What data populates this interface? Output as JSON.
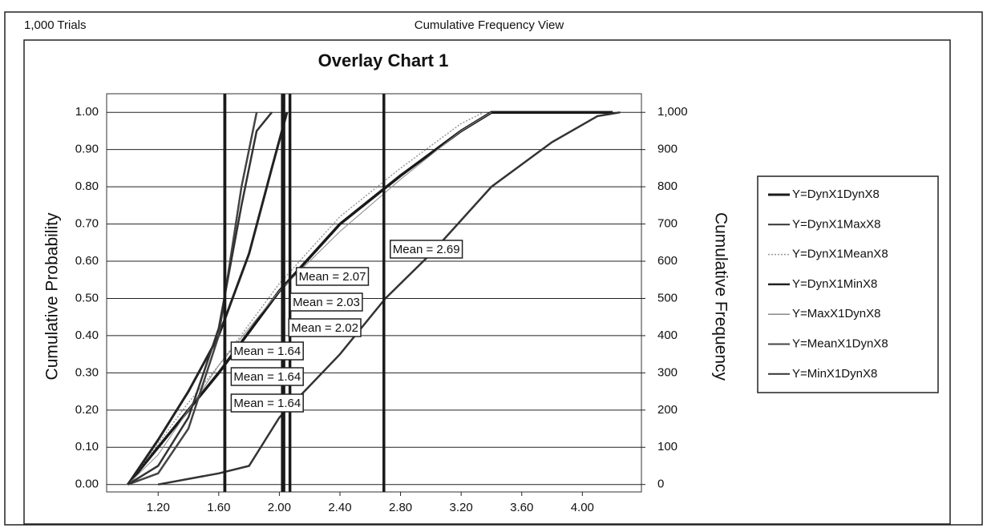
{
  "chart_data": {
    "type": "line",
    "trials_label": "1,000 Trials",
    "view_title": "Cumulative Frequency View",
    "title": "Overlay Chart 1",
    "y_label": "Cumulative Probability",
    "y2_label": "Cumulative Frequency",
    "xlim": [
      0.86,
      4.39
    ],
    "xticks": [
      {
        "value": 1.2,
        "label": "1.20"
      },
      {
        "value": 1.6,
        "label": "1.60"
      },
      {
        "value": 2.0,
        "label": "2.00"
      },
      {
        "value": 2.4,
        "label": "2.40"
      },
      {
        "value": 2.8,
        "label": "2.80"
      },
      {
        "value": 3.2,
        "label": "3.20"
      },
      {
        "value": 3.6,
        "label": "3.60"
      },
      {
        "value": 4.0,
        "label": "4.00"
      }
    ],
    "ylim": [
      -0.02,
      1.05
    ],
    "yticks": [
      {
        "value": 0,
        "label": "0.00"
      },
      {
        "value": 0.1,
        "label": "0.10"
      },
      {
        "value": 0.2,
        "label": "0.20"
      },
      {
        "value": 0.3,
        "label": "0.30"
      },
      {
        "value": 0.4,
        "label": "0.40"
      },
      {
        "value": 0.5,
        "label": "0.50"
      },
      {
        "value": 0.6,
        "label": "0.60"
      },
      {
        "value": 0.7,
        "label": "0.70"
      },
      {
        "value": 0.8,
        "label": "0.80"
      },
      {
        "value": 0.9,
        "label": "0.90"
      },
      {
        "value": 1.0,
        "label": "1.00"
      }
    ],
    "y2lim": [
      -20,
      1050
    ],
    "y2ticks": [
      0,
      100,
      200,
      300,
      400,
      500,
      600,
      700,
      800,
      900,
      {
        "value": 1000,
        "label": "1,000"
      }
    ],
    "grid": true,
    "legend": "right",
    "series": [
      {
        "name": "Y=DynX1DynX8",
        "color": "#1a1a1a",
        "mean": 2.07,
        "mean_label": "Mean = 2.07",
        "x": [
          1.0,
          1.2,
          1.4,
          1.6,
          2.0,
          2.4,
          2.8,
          3.2,
          3.4,
          4.2
        ],
        "values": [
          0,
          0.1,
          0.2,
          0.3,
          0.52,
          0.7,
          0.83,
          0.95,
          1.0,
          1.0
        ]
      },
      {
        "name": "Y=DynX1MaxX8",
        "color": "#333333",
        "mean": 2.69,
        "mean_label": "Mean = 2.69",
        "x": [
          1.2,
          1.6,
          1.8,
          2.0,
          2.4,
          2.7,
          3.0,
          3.4,
          3.8,
          4.1,
          4.25
        ],
        "values": [
          0,
          0.03,
          0.05,
          0.18,
          0.35,
          0.5,
          0.62,
          0.8,
          0.92,
          0.99,
          1.0
        ]
      },
      {
        "name": "Y=DynX1MeanX8",
        "color": "#999999",
        "mean": 2.03,
        "mean_label": "Mean = 2.03",
        "x": [
          1.0,
          1.2,
          1.4,
          1.6,
          2.0,
          2.4,
          2.8,
          3.2,
          3.35
        ],
        "values": [
          0,
          0.11,
          0.22,
          0.32,
          0.54,
          0.72,
          0.85,
          0.97,
          1.0
        ]
      },
      {
        "name": "Y=DynX1MinX8",
        "color": "#222222",
        "mean": 1.64,
        "mean_label": "Mean = 1.64",
        "x": [
          1.0,
          1.2,
          1.4,
          1.6,
          1.8,
          1.95,
          2.05
        ],
        "values": [
          0,
          0.12,
          0.25,
          0.4,
          0.62,
          0.85,
          1.0
        ]
      },
      {
        "name": "Y=MaxX1DynX8",
        "color": "#888888",
        "mean": 2.02,
        "mean_label": "Mean = 2.02",
        "x": [
          1.0,
          1.2,
          1.4,
          1.6,
          2.0,
          2.4,
          2.8,
          3.2,
          3.4
        ],
        "values": [
          0,
          0.08,
          0.2,
          0.32,
          0.52,
          0.68,
          0.82,
          0.95,
          1.0
        ]
      },
      {
        "name": "Y=MeanX1DynX8",
        "color": "#444444",
        "mean": 1.64,
        "mean_label": "Mean = 1.64",
        "x": [
          1.0,
          1.2,
          1.4,
          1.6,
          1.75,
          1.85
        ],
        "values": [
          0,
          0.03,
          0.15,
          0.4,
          0.8,
          1.0
        ]
      },
      {
        "name": "Y=MinX1DynX8",
        "color": "#333333",
        "mean": 1.64,
        "mean_label": "Mean = 1.64",
        "x": [
          1.0,
          1.2,
          1.4,
          1.6,
          1.75,
          1.85,
          1.95
        ],
        "values": [
          0,
          0.05,
          0.18,
          0.42,
          0.75,
          0.95,
          1.0
        ]
      }
    ]
  }
}
